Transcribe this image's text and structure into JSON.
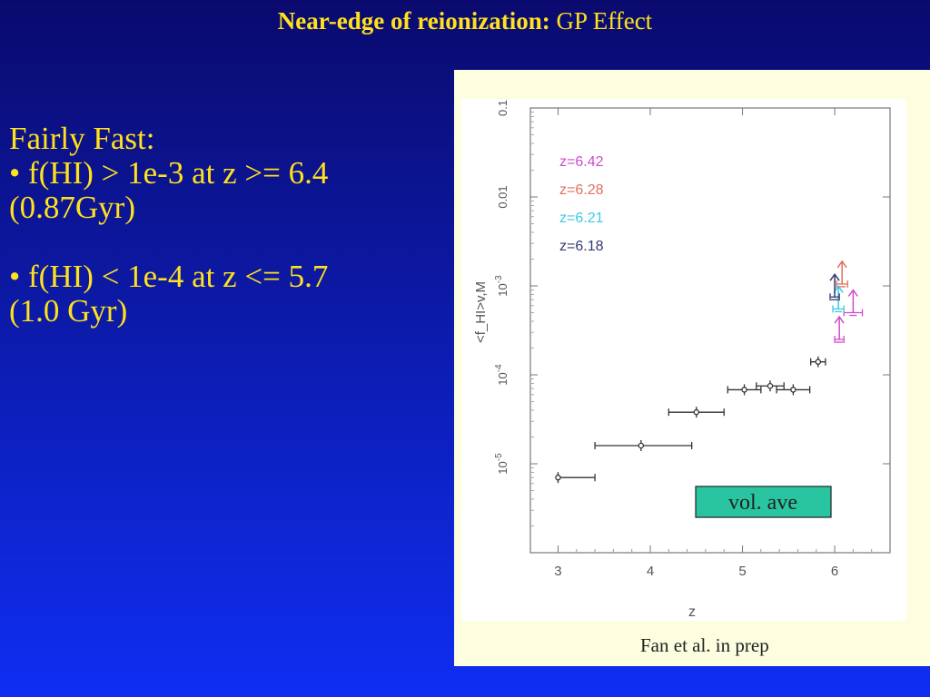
{
  "slide": {
    "title_bold": "Near-edge of reionization:",
    "title_rest": "GP Effect",
    "lines": [
      "Fairly Fast:",
      "• f(HI) > 1e-3 at z >= 6.4",
      "(0.87Gyr)",
      "• f(HI) < 1e-4 at z <= 5.7",
      "(1.0 Gyr)"
    ],
    "caption": "Fan et al. in prep"
  },
  "chart_data": {
    "type": "scatter",
    "xlabel": "z",
    "ylabel": "<f_HI>v,M",
    "xlim": [
      2.7,
      6.6
    ],
    "ylim": [
      1e-06,
      0.1
    ],
    "yscale": "log",
    "x_ticks": [
      "3",
      "4",
      "5",
      "6"
    ],
    "y_ticks": [
      "10^-5",
      "10^-4",
      "10^-3",
      "0.01",
      "0.1"
    ],
    "legend": [
      "z=6.42",
      "z=6.28",
      "z=6.21",
      "z=6.18"
    ],
    "legend_colors": [
      "#d04bc8",
      "#e07060",
      "#3ec8e0",
      "#303a70"
    ],
    "annotation": "vol. ave",
    "annotation_bg": "#29c5a0",
    "series": [
      {
        "name": "vol. ave",
        "color": "#333333",
        "points": [
          {
            "x": 3.0,
            "xerr": [
              0.0,
              0.4
            ],
            "y": 7e-06
          },
          {
            "x": 3.9,
            "xerr": [
              0.5,
              0.55
            ],
            "y": 1.6e-05
          },
          {
            "x": 4.5,
            "xerr": [
              0.3,
              0.3
            ],
            "y": 3.8e-05
          },
          {
            "x": 5.02,
            "xerr": [
              0.18,
              0.18
            ],
            "y": 6.8e-05
          },
          {
            "x": 5.3,
            "xerr": [
              0.15,
              0.15
            ],
            "y": 7.5e-05
          },
          {
            "x": 5.55,
            "xerr": [
              0.18,
              0.18
            ],
            "y": 6.8e-05
          },
          {
            "x": 5.82,
            "xerr": [
              0.08,
              0.08
            ],
            "y": 0.00014
          }
        ]
      },
      {
        "name": "z=6.42",
        "color": "#d04bc8",
        "points": [
          {
            "x": 6.05,
            "xerr": [
              0.05,
              0.05
            ],
            "y": 0.00025,
            "lower_limit": true
          },
          {
            "x": 6.2,
            "xerr": [
              0.1,
              0.1
            ],
            "y": 0.0005,
            "lower_limit": true
          }
        ]
      },
      {
        "name": "z=6.28",
        "color": "#e07060",
        "points": [
          {
            "x": 6.08,
            "xerr": [
              0.06,
              0.06
            ],
            "y": 0.00105,
            "lower_limit": true
          }
        ]
      },
      {
        "name": "z=6.21",
        "color": "#3ec8e0",
        "points": [
          {
            "x": 6.04,
            "xerr": [
              0.06,
              0.06
            ],
            "y": 0.00055,
            "lower_limit": true
          }
        ]
      },
      {
        "name": "z=6.18",
        "color": "#303a70",
        "points": [
          {
            "x": 6.0,
            "xerr": [
              0.05,
              0.05
            ],
            "y": 0.00075,
            "lower_limit": true
          }
        ]
      }
    ]
  }
}
